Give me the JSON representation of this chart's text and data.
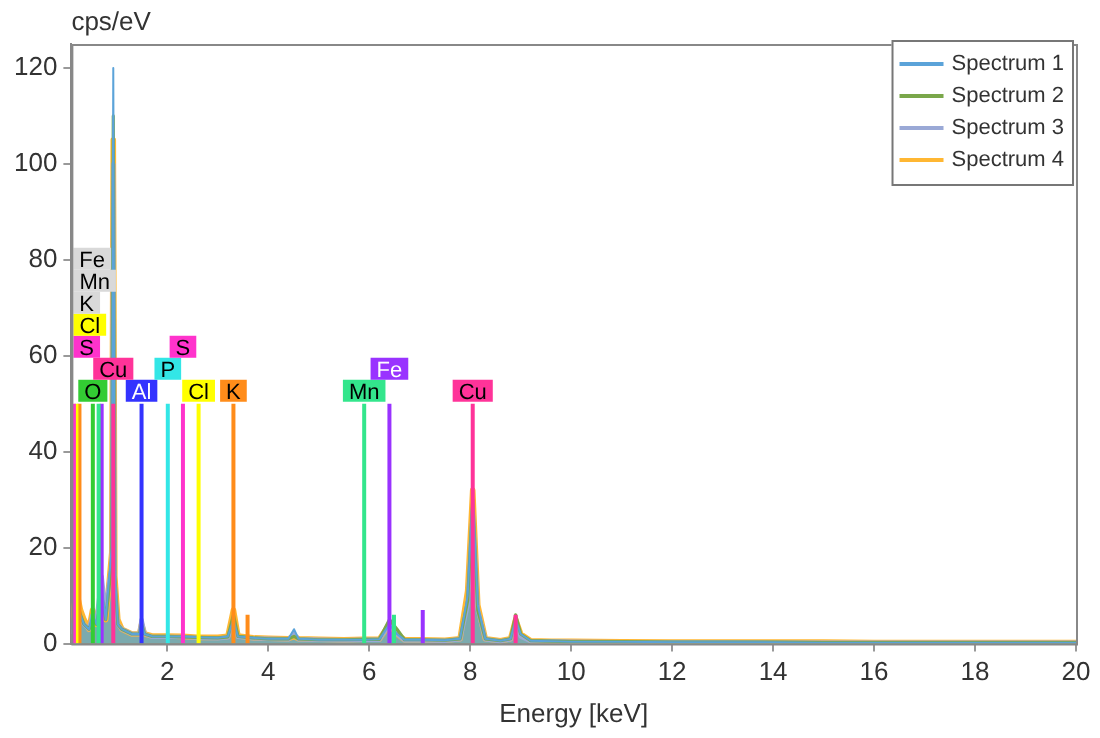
{
  "chart_data": {
    "type": "area",
    "xlabel": "Energy [keV]",
    "ylabel": "cps/eV",
    "xlim": [
      0.1,
      20
    ],
    "ylim": [
      0,
      125
    ],
    "xticks": [
      2,
      4,
      6,
      8,
      10,
      12,
      14,
      16,
      18,
      20
    ],
    "yticks": [
      0,
      20,
      40,
      60,
      80,
      100,
      120
    ],
    "grid": false,
    "legend": "top right",
    "x": [
      0.1,
      0.2,
      0.28,
      0.35,
      0.45,
      0.52,
      0.6,
      0.7,
      0.78,
      0.85,
      0.9,
      0.93,
      0.96,
      1.02,
      1.1,
      1.3,
      1.45,
      1.49,
      1.55,
      1.7,
      2.0,
      2.3,
      2.6,
      3.0,
      3.2,
      3.31,
      3.4,
      3.7,
      4.0,
      4.4,
      4.51,
      4.6,
      5.0,
      5.5,
      5.9,
      6.2,
      6.4,
      6.55,
      6.7,
      7.0,
      7.5,
      7.8,
      7.95,
      8.05,
      8.15,
      8.3,
      8.6,
      8.8,
      8.9,
      9.0,
      9.2,
      9.6,
      10,
      11,
      12,
      13,
      14,
      15,
      16,
      17,
      18,
      19,
      20
    ],
    "series": [
      {
        "name": "Spectrum 1",
        "color": "#5ba3d9",
        "values": [
          3,
          10,
          6,
          4,
          3,
          6,
          4,
          12,
          5,
          14,
          20,
          120,
          15,
          4,
          3,
          2,
          2,
          4,
          2,
          1.5,
          1.5,
          1.5,
          1.3,
          1.2,
          1.5,
          5,
          1.5,
          1.2,
          1,
          1,
          3,
          1,
          0.8,
          0.8,
          0.8,
          0.9,
          4,
          2,
          0.8,
          0.8,
          0.7,
          1,
          10,
          31,
          8,
          1,
          0.6,
          1,
          5,
          2,
          0.6,
          0.5,
          0.4,
          0.4,
          0.3,
          0.3,
          0.3,
          0.2,
          0.2,
          0.2,
          0.2,
          0.2,
          0.2
        ]
      },
      {
        "name": "Spectrum 2",
        "color": "#7aa74a",
        "values": [
          3,
          9,
          6,
          4,
          3,
          5,
          4,
          10,
          5,
          12,
          18,
          110,
          14,
          4,
          3,
          2,
          2,
          4,
          2,
          1.5,
          1.5,
          1.4,
          1.3,
          1.2,
          1.4,
          6,
          1.5,
          1.2,
          1,
          1,
          1.5,
          1,
          0.8,
          0.8,
          0.9,
          0.9,
          5,
          3,
          0.8,
          0.8,
          0.7,
          1,
          9,
          30,
          7,
          1,
          0.6,
          1,
          6,
          2,
          0.6,
          0.5,
          0.4,
          0.4,
          0.3,
          0.3,
          0.3,
          0.2,
          0.2,
          0.2,
          0.2,
          0.2,
          0.2
        ]
      },
      {
        "name": "Spectrum 3",
        "color": "#9aa9d6",
        "values": [
          2,
          8,
          5,
          4,
          3,
          6,
          5,
          14,
          6,
          13,
          16,
          100,
          12,
          4,
          3,
          2,
          2,
          5,
          2,
          1.4,
          1.4,
          1.4,
          1.2,
          1.1,
          1.3,
          4,
          1.4,
          1.1,
          1,
          0.9,
          2,
          0.9,
          0.8,
          0.7,
          0.8,
          0.8,
          4,
          2,
          0.7,
          0.7,
          0.6,
          0.9,
          8,
          28,
          7,
          0.9,
          0.5,
          0.9,
          4,
          1.5,
          0.5,
          0.5,
          0.4,
          0.3,
          0.3,
          0.3,
          0.2,
          0.2,
          0.2,
          0.2,
          0.2,
          0.2,
          0.2
        ]
      },
      {
        "name": "Spectrum 4",
        "color": "#ffb732",
        "values": [
          4,
          11,
          7,
          5,
          3,
          7,
          4,
          11,
          5,
          13,
          19,
          105,
          14,
          5,
          3,
          2,
          2,
          4,
          2,
          1.6,
          1.6,
          1.5,
          1.3,
          1.3,
          1.5,
          7,
          1.6,
          1.2,
          1.1,
          1,
          1.5,
          1,
          0.9,
          0.8,
          0.9,
          0.9,
          4,
          2,
          0.8,
          0.8,
          0.7,
          1,
          11,
          32,
          8,
          1,
          0.6,
          1,
          5,
          2,
          0.6,
          0.5,
          0.5,
          0.4,
          0.3,
          0.3,
          0.3,
          0.3,
          0.2,
          0.2,
          0.2,
          0.2,
          0.2
        ]
      },
      {
        "type": "line",
        "color": "#33cc33",
        "x": [
          0.525,
          0.525
        ],
        "values": [
          0,
          50
        ]
      },
      {
        "type": "line",
        "color": "#3333ff",
        "x": [
          1.49,
          1.49
        ],
        "values": [
          0,
          50
        ]
      },
      {
        "type": "line",
        "color": "#33e6e6",
        "x": [
          2.01,
          2.01
        ],
        "values": [
          0,
          50
        ]
      },
      {
        "type": "line",
        "color": "#ffff00",
        "x": [
          2.62,
          2.62
        ],
        "values": [
          0,
          50
        ]
      },
      {
        "type": "line",
        "color": "#ff8c1a",
        "x": [
          3.31,
          3.31
        ],
        "values": [
          0,
          50
        ]
      },
      {
        "type": "line",
        "color": "#33e68c",
        "x": [
          5.9,
          5.9
        ],
        "values": [
          0,
          50
        ]
      },
      {
        "type": "line",
        "color": "#ff3399",
        "x": [
          8.05,
          8.05
        ],
        "values": [
          0,
          50
        ]
      },
      {
        "type": "line",
        "color": "#ff33cc",
        "x": [
          2.31,
          2.31
        ],
        "values": [
          0,
          50
        ]
      },
      {
        "type": "line",
        "color": "#9933ff",
        "x": [
          6.4,
          6.4
        ],
        "values": [
          0,
          50
        ]
      },
      {
        "type": "line",
        "color": "#ff3399",
        "x": [
          0.93,
          0.93
        ],
        "values": [
          0,
          50
        ]
      },
      {
        "type": "line",
        "color": "#ff33cc",
        "x": [
          0.15,
          0.15
        ],
        "values": [
          0,
          50
        ]
      },
      {
        "type": "line",
        "color": "#ffff00",
        "x": [
          0.2,
          0.2
        ],
        "values": [
          0,
          50
        ]
      },
      {
        "type": "line",
        "color": "#ff8c1a",
        "x": [
          0.26,
          0.26
        ],
        "values": [
          0,
          50
        ]
      },
      {
        "type": "line",
        "color": "#33e68c",
        "x": [
          0.64,
          0.64
        ],
        "values": [
          0,
          50
        ]
      },
      {
        "type": "line",
        "color": "#9933ff",
        "x": [
          0.7,
          0.7
        ],
        "values": [
          0,
          50
        ]
      },
      {
        "type": "line",
        "color": "#ff8c1a",
        "x": [
          3.59,
          3.59
        ],
        "values": [
          0,
          6
        ]
      },
      {
        "type": "line",
        "color": "#9933ff",
        "x": [
          7.06,
          7.06
        ],
        "values": [
          0,
          7
        ]
      },
      {
        "type": "line",
        "color": "#ff3399",
        "x": [
          8.9,
          8.9
        ],
        "values": [
          0,
          6
        ]
      },
      {
        "type": "line",
        "color": "#33e68c",
        "x": [
          6.49,
          6.49
        ],
        "values": [
          0,
          6
        ]
      }
    ],
    "annotations": [
      {
        "text": "O",
        "x": 0.525,
        "y": 50
      },
      {
        "text": "Al",
        "x": 1.49,
        "y": 50
      },
      {
        "text": "P",
        "x": 2.01,
        "y": 50
      },
      {
        "text": "Cl",
        "x": 2.62,
        "y": 50
      },
      {
        "text": "K",
        "x": 3.31,
        "y": 50
      },
      {
        "text": "Mn",
        "x": 5.9,
        "y": 50
      },
      {
        "text": "Cu",
        "x": 8.05,
        "y": 50
      },
      {
        "text": "S",
        "x": 2.31,
        "y": 50
      },
      {
        "text": "Fe",
        "x": 6.4,
        "y": 50
      },
      {
        "text": "Cu",
        "x": 0.93,
        "y": 50
      },
      {
        "text": "S",
        "x": 0.15,
        "y": 50
      },
      {
        "text": "Cl",
        "x": 0.2,
        "y": 50
      },
      "K",
      "Mn",
      "Fe"
    ]
  }
}
